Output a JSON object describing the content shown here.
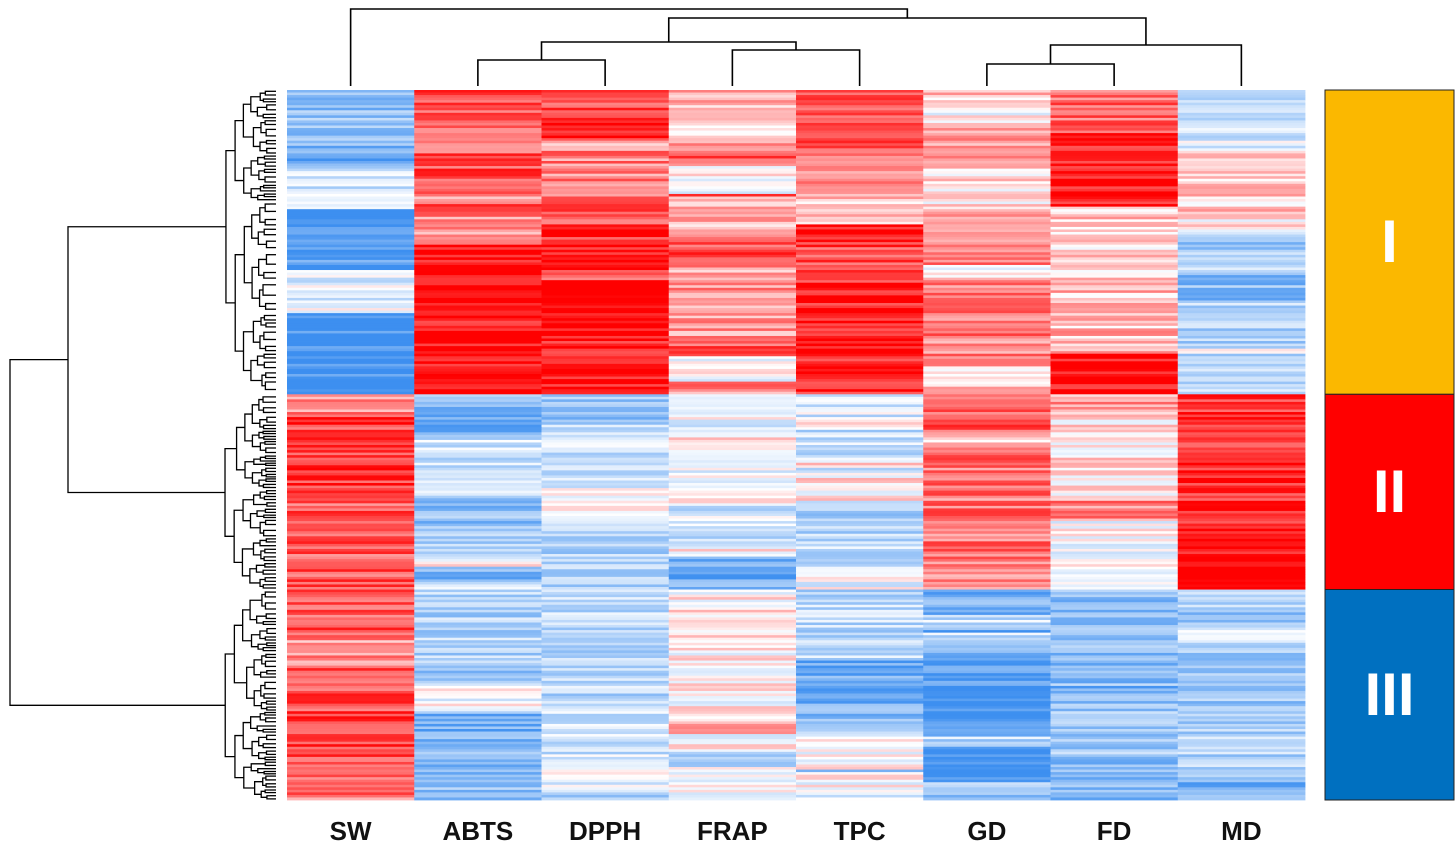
{
  "chart_data": {
    "type": "heatmap",
    "title": "",
    "columns": [
      "SW",
      "ABTS",
      "DPPH",
      "FRAP",
      "TPC",
      "GD",
      "FD",
      "MD"
    ],
    "color_scale": {
      "low": "#3d8ff0",
      "mid": "#ffffff",
      "high": "#ff0000"
    },
    "clusters": [
      {
        "label": "I",
        "color": "#fbb800",
        "row_fraction": 0.427
      },
      {
        "label": "II",
        "color": "#ff0000",
        "row_fraction": 0.275
      },
      {
        "label": "III",
        "color": "#0070c0",
        "row_fraction": 0.298
      }
    ],
    "column_dendrogram_order": [
      "SW",
      "ABTS",
      "DPPH",
      "FRAP",
      "TPC",
      "GD",
      "FD",
      "MD"
    ],
    "cluster_profile_values": {
      "note_scale": "-1 = blue (low), 0 = white, 1 = red (high)",
      "I": {
        "SW": -0.55,
        "ABTS": 0.65,
        "DPPH": 0.75,
        "FRAP": 0.3,
        "TPC": 0.6,
        "GD": 0.25,
        "FD": 0.55,
        "MD": -0.2
      },
      "II": {
        "SW": 0.45,
        "ABTS": -0.35,
        "DPPH": -0.5,
        "FRAP": -0.3,
        "TPC": -0.2,
        "GD": 0.7,
        "FD": 0.35,
        "MD": 0.8
      },
      "III": {
        "SW": 0.6,
        "ABTS": -0.4,
        "DPPH": -0.35,
        "FRAP": 0.05,
        "TPC": -0.35,
        "GD": -0.7,
        "FD": -0.65,
        "MD": -0.35
      }
    }
  }
}
